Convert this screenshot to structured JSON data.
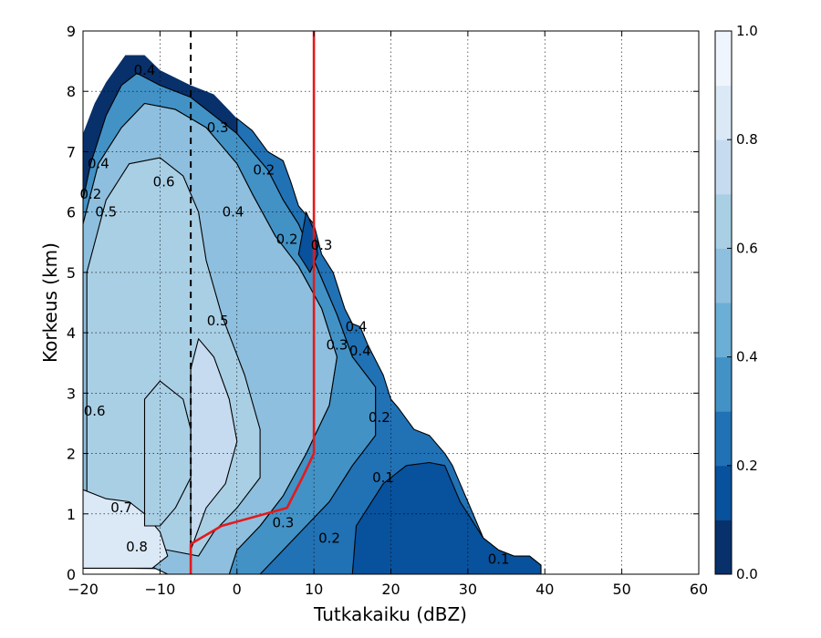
{
  "chart_data": {
    "type": "filled-contour",
    "xlabel": "Tutkakaiku (dBZ)",
    "ylabel": "Korkeus (km)",
    "xlim": [
      -20,
      60
    ],
    "ylim": [
      0,
      9
    ],
    "xticks": [
      -20,
      -10,
      0,
      10,
      20,
      30,
      40,
      50,
      60
    ],
    "yticks": [
      0,
      1,
      2,
      3,
      4,
      5,
      6,
      7,
      8,
      9
    ],
    "xtick_labels": [
      "−20",
      "−10",
      "0",
      "10",
      "20",
      "30",
      "40",
      "50",
      "60"
    ],
    "ytick_labels": [
      "0",
      "1",
      "2",
      "3",
      "4",
      "5",
      "6",
      "7",
      "8",
      "9"
    ],
    "grid": true,
    "colorbar": {
      "range": [
        0.0,
        1.0
      ],
      "levels": [
        0.0,
        0.1,
        0.2,
        0.3,
        0.4,
        0.5,
        0.6,
        0.7,
        0.8,
        0.9,
        1.0
      ],
      "colors": [
        "#08306b",
        "#08519c",
        "#2171b5",
        "#4292c6",
        "#6baed6",
        "#8ebfde",
        "#a9cfe5",
        "#c6dbef",
        "#dbe9f6",
        "#eff5fd"
      ],
      "tick_labels": [
        "0.0",
        "0.2",
        "0.4",
        "0.6",
        "0.8",
        "1.0"
      ]
    },
    "data_extent": [
      [
        -20,
        0.1
      ],
      [
        -20,
        7.3
      ],
      [
        -18.5,
        7.8
      ],
      [
        -17,
        8.15
      ],
      [
        -14.5,
        8.6
      ],
      [
        -12,
        8.6
      ],
      [
        -10,
        8.35
      ],
      [
        -6,
        8.1
      ],
      [
        -3,
        7.95
      ],
      [
        0,
        7.55
      ],
      [
        2,
        7.35
      ],
      [
        4,
        7.0
      ],
      [
        6,
        6.85
      ],
      [
        7,
        6.5
      ],
      [
        8,
        6.1
      ],
      [
        10,
        5.8
      ],
      [
        11,
        5.3
      ],
      [
        12.5,
        5.0
      ],
      [
        14,
        4.4
      ],
      [
        15,
        4.15
      ],
      [
        16,
        4.1
      ],
      [
        17,
        3.8
      ],
      [
        19,
        3.3
      ],
      [
        20,
        2.9
      ],
      [
        21,
        2.75
      ],
      [
        23,
        2.4
      ],
      [
        25,
        2.3
      ],
      [
        27,
        2.0
      ],
      [
        28,
        1.8
      ],
      [
        29,
        1.5
      ],
      [
        30,
        1.2
      ],
      [
        31,
        0.9
      ],
      [
        32,
        0.6
      ],
      [
        34,
        0.4
      ],
      [
        36,
        0.3
      ],
      [
        38,
        0.3
      ],
      [
        39.5,
        0.15
      ],
      [
        39.5,
        0
      ]
    ],
    "filled_regions": [
      {
        "level": 0.2,
        "polygon": [
          [
            0,
            7.55
          ],
          [
            2,
            7.35
          ],
          [
            4,
            7.0
          ],
          [
            6,
            6.85
          ],
          [
            7,
            6.5
          ],
          [
            8,
            6.1
          ],
          [
            10,
            5.8
          ],
          [
            11,
            5.3
          ],
          [
            12.5,
            5.0
          ],
          [
            14,
            4.4
          ],
          [
            15,
            4.15
          ],
          [
            16,
            4.1
          ],
          [
            17,
            3.8
          ],
          [
            19,
            3.3
          ],
          [
            20,
            2.9
          ],
          [
            21,
            2.75
          ],
          [
            23,
            2.4
          ],
          [
            25,
            2.3
          ],
          [
            27,
            2.0
          ],
          [
            28,
            1.8
          ],
          [
            29,
            1.5
          ],
          [
            30,
            1.2
          ],
          [
            31,
            0.9
          ],
          [
            32,
            0.6
          ],
          [
            34,
            0.4
          ],
          [
            36,
            0.3
          ],
          [
            38,
            0.3
          ],
          [
            39.5,
            0.15
          ],
          [
            39.5,
            0
          ],
          [
            3,
            0
          ],
          [
            6,
            0.4
          ],
          [
            9,
            0.8
          ],
          [
            12,
            1.2
          ],
          [
            15,
            1.8
          ],
          [
            18,
            2.3
          ],
          [
            18,
            3.1
          ],
          [
            15,
            3.6
          ],
          [
            13,
            4.3
          ],
          [
            10,
            5.2
          ],
          [
            8,
            5.8
          ],
          [
            6,
            6.2
          ],
          [
            4,
            6.7
          ],
          [
            2,
            7.0
          ],
          [
            0,
            7.3
          ]
        ]
      },
      {
        "level": 0.3,
        "polygon": [
          [
            -20,
            6.2
          ],
          [
            -19,
            6.8
          ],
          [
            -17,
            7.6
          ],
          [
            -15,
            8.1
          ],
          [
            -13,
            8.3
          ],
          [
            -10,
            8.1
          ],
          [
            -6,
            7.9
          ],
          [
            -2,
            7.5
          ],
          [
            0,
            7.3
          ],
          [
            2,
            7.0
          ],
          [
            4,
            6.7
          ],
          [
            6,
            6.2
          ],
          [
            8,
            5.8
          ],
          [
            10,
            5.2
          ],
          [
            13,
            4.3
          ],
          [
            15,
            3.6
          ],
          [
            18,
            3.1
          ],
          [
            18,
            2.3
          ],
          [
            15,
            1.8
          ],
          [
            12,
            1.2
          ],
          [
            9,
            0.8
          ],
          [
            6,
            0.4
          ],
          [
            3,
            0
          ],
          [
            -1,
            0
          ],
          [
            0,
            0.4
          ],
          [
            3,
            0.8
          ],
          [
            6,
            1.3
          ],
          [
            9,
            2.0
          ],
          [
            12,
            2.8
          ],
          [
            13,
            3.6
          ],
          [
            11,
            4.4
          ],
          [
            8,
            5.1
          ],
          [
            5,
            5.6
          ],
          [
            2,
            6.3
          ],
          [
            0,
            6.8
          ],
          [
            -4,
            7.4
          ],
          [
            -8,
            7.7
          ],
          [
            -12,
            7.8
          ],
          [
            -15,
            7.4
          ],
          [
            -18,
            6.8
          ],
          [
            -20,
            5.8
          ]
        ]
      },
      {
        "level": 0.5,
        "polygon": [
          [
            -20,
            0.5
          ],
          [
            -20,
            5.8
          ],
          [
            -18,
            6.8
          ],
          [
            -15,
            7.4
          ],
          [
            -12,
            7.8
          ],
          [
            -8,
            7.7
          ],
          [
            -4,
            7.4
          ],
          [
            0,
            6.8
          ],
          [
            2,
            6.3
          ],
          [
            5,
            5.6
          ],
          [
            8,
            5.1
          ],
          [
            11,
            4.4
          ],
          [
            13,
            3.6
          ],
          [
            12,
            2.8
          ],
          [
            9,
            2.0
          ],
          [
            6,
            1.3
          ],
          [
            3,
            0.8
          ],
          [
            0,
            0.4
          ],
          [
            -1,
            0
          ],
          [
            -9,
            0
          ],
          [
            -14,
            0.3
          ],
          [
            -18,
            0.4
          ]
        ]
      },
      {
        "level": 0.6,
        "polygon": [
          [
            -19.5,
            0.8
          ],
          [
            -19.5,
            5.0
          ],
          [
            -17,
            6.2
          ],
          [
            -14,
            6.8
          ],
          [
            -10,
            6.9
          ],
          [
            -7,
            6.6
          ],
          [
            -5,
            6.0
          ],
          [
            -4,
            5.2
          ],
          [
            -2,
            4.3
          ],
          [
            1,
            3.3
          ],
          [
            3,
            2.4
          ],
          [
            3,
            1.6
          ],
          [
            0,
            1.1
          ],
          [
            -3,
            0.7
          ],
          [
            -5,
            0.3
          ],
          [
            -9,
            0.4
          ],
          [
            -14,
            0.5
          ]
        ]
      },
      {
        "level": 0.7,
        "polygon": [
          [
            -6,
            0.4
          ],
          [
            -6,
            3.4
          ],
          [
            -5,
            3.9
          ],
          [
            -3,
            3.6
          ],
          [
            -1,
            2.9
          ],
          [
            0,
            2.2
          ],
          [
            -1.5,
            1.5
          ],
          [
            -4,
            1.1
          ]
        ]
      },
      {
        "level": 0.8,
        "polygon": [
          [
            -20,
            0.1
          ],
          [
            -20,
            1.4
          ],
          [
            -17,
            1.25
          ],
          [
            -14,
            1.2
          ],
          [
            -12,
            1.0
          ],
          [
            -10,
            0.7
          ],
          [
            -9,
            0.3
          ],
          [
            -11,
            0.1
          ]
        ]
      },
      {
        "level": 0.6,
        "polygon": [
          [
            -12,
            0.8
          ],
          [
            -12,
            2.9
          ],
          [
            -10,
            3.2
          ],
          [
            -7,
            2.9
          ],
          [
            -6,
            2.4
          ],
          [
            -6,
            1.6
          ],
          [
            -8,
            1.1
          ],
          [
            -10,
            0.8
          ]
        ]
      },
      {
        "level": 0.1,
        "polygon": [
          [
            15,
            0
          ],
          [
            15.5,
            0.8
          ],
          [
            17,
            1.1
          ],
          [
            19,
            1.5
          ],
          [
            22,
            1.8
          ],
          [
            25,
            1.85
          ],
          [
            27,
            1.8
          ],
          [
            28,
            1.5
          ],
          [
            29,
            1.2
          ],
          [
            30,
            1.0
          ],
          [
            31,
            0.8
          ],
          [
            32,
            0.6
          ],
          [
            34,
            0.4
          ],
          [
            36,
            0.3
          ],
          [
            38,
            0.3
          ],
          [
            39.5,
            0.15
          ],
          [
            39.5,
            0
          ]
        ]
      },
      {
        "level": 0.1,
        "polygon": [
          [
            8,
            5.3
          ],
          [
            9,
            6.0
          ],
          [
            10,
            5.7
          ],
          [
            10.5,
            5.3
          ],
          [
            9.5,
            5.0
          ]
        ]
      }
    ],
    "red_line": [
      [
        -6,
        0
      ],
      [
        -6,
        0.5
      ],
      [
        -2,
        0.8
      ],
      [
        6.5,
        1.1
      ],
      [
        8.5,
        1.6
      ],
      [
        10,
        2.0
      ],
      [
        10,
        9
      ]
    ],
    "dashed_line_x": -6,
    "contour_labels": [
      {
        "text": "0.4",
        "x": -12,
        "y": 8.35
      },
      {
        "text": "0.3",
        "x": -2.5,
        "y": 7.4
      },
      {
        "text": "0.2",
        "x": 3.5,
        "y": 6.7
      },
      {
        "text": "0.6",
        "x": -9.5,
        "y": 6.5
      },
      {
        "text": "0.4",
        "x": -0.5,
        "y": 6.0
      },
      {
        "text": "0.2",
        "x": 6.5,
        "y": 5.55
      },
      {
        "text": "0.3",
        "x": 11,
        "y": 5.45
      },
      {
        "text": "0.4",
        "x": -18,
        "y": 6.8
      },
      {
        "text": "0.2",
        "x": -19,
        "y": 6.3
      },
      {
        "text": "0.5",
        "x": -17,
        "y": 6.0
      },
      {
        "text": "0.5",
        "x": -2.5,
        "y": 4.2
      },
      {
        "text": "0.4",
        "x": 15.5,
        "y": 4.1
      },
      {
        "text": "0.3",
        "x": 13,
        "y": 3.8
      },
      {
        "text": "0.4",
        "x": 16,
        "y": 3.7
      },
      {
        "text": "0.2",
        "x": 18.5,
        "y": 2.6
      },
      {
        "text": "0.6",
        "x": -18.5,
        "y": 2.7
      },
      {
        "text": "0.1",
        "x": 19,
        "y": 1.6
      },
      {
        "text": "0.7",
        "x": -15,
        "y": 1.1
      },
      {
        "text": "0.3",
        "x": 6,
        "y": 0.85
      },
      {
        "text": "0.2",
        "x": 12,
        "y": 0.6
      },
      {
        "text": "0.8",
        "x": -13,
        "y": 0.45
      },
      {
        "text": "0.1",
        "x": 34,
        "y": 0.25
      }
    ]
  }
}
